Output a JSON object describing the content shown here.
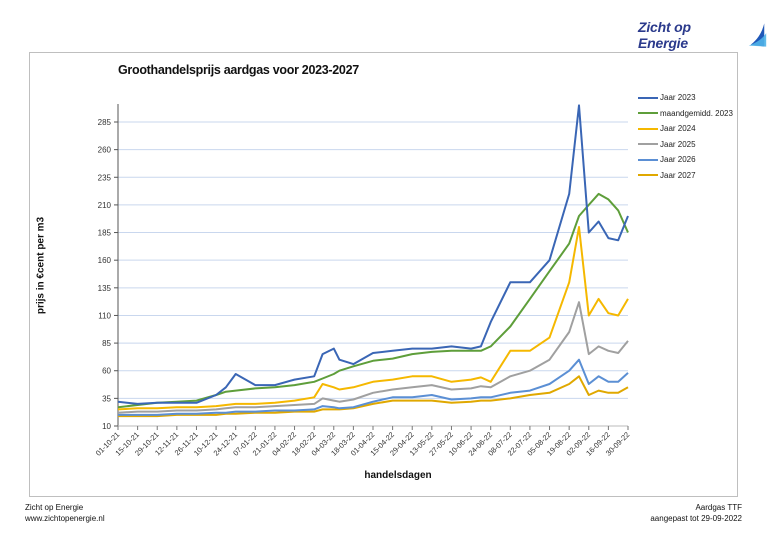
{
  "header": {
    "logo_text": "Zicht op Energie"
  },
  "footer": {
    "left_line1": "Zicht op Energie",
    "left_line2": "www.zichtopenergie.nl",
    "right_line1": "Aardgas TTF",
    "right_line2": "aangepast tot 29-09-2022"
  },
  "chart_data": {
    "type": "line",
    "title": "Groothandelsprijs aardgas voor 2023-2027",
    "xlabel": "handelsdagen",
    "ylabel": "prijs in €cent per m3",
    "ylim": [
      10,
      300
    ],
    "yticks": [
      10,
      35,
      60,
      85,
      110,
      135,
      160,
      185,
      210,
      235,
      260,
      285
    ],
    "grid": true,
    "legend_position": "right",
    "x_tick_labels": [
      "01-10-21",
      "15-10-21",
      "29-10-21",
      "12-11-21",
      "26-11-21",
      "10-12-21",
      "24-12-21",
      "07-01-22",
      "21-01-22",
      "04-02-22",
      "18-02-22",
      "04-03-22",
      "18-03-22",
      "01-04-22",
      "15-04-22",
      "29-04-22",
      "13-05-22",
      "27-05-22",
      "10-06-22",
      "24-06-22",
      "08-07-22",
      "22-07-22",
      "05-08-22",
      "19-08-22",
      "02-09-22",
      "16-09-22",
      "30-09-22"
    ],
    "x": [
      "01-10-21",
      "15-10-21",
      "29-10-21",
      "12-11-21",
      "26-11-21",
      "10-12-21",
      "17-12-21",
      "24-12-21",
      "07-01-22",
      "21-01-22",
      "04-02-22",
      "18-02-22",
      "24-02-22",
      "04-03-22",
      "08-03-22",
      "18-03-22",
      "01-04-22",
      "15-04-22",
      "29-04-22",
      "13-05-22",
      "27-05-22",
      "10-06-22",
      "17-06-22",
      "24-06-22",
      "08-07-22",
      "22-07-22",
      "05-08-22",
      "19-08-22",
      "26-08-22",
      "02-09-22",
      "09-09-22",
      "16-09-22",
      "23-09-22",
      "30-09-22"
    ],
    "series": [
      {
        "name": "Jaar 2023",
        "color": "#3a66b5",
        "values": [
          32,
          30,
          31,
          31,
          31,
          38,
          45,
          57,
          47,
          47,
          52,
          55,
          75,
          80,
          70,
          66,
          76,
          78,
          80,
          80,
          82,
          80,
          82,
          104,
          140,
          140,
          160,
          220,
          300,
          185,
          195,
          180,
          178,
          200
        ]
      },
      {
        "name": "maandgemidd. 2023",
        "color": "#5e9e3a",
        "values": [
          27,
          29,
          31,
          32,
          33,
          38,
          41,
          42,
          44,
          45,
          47,
          50,
          53,
          57,
          60,
          64,
          69,
          71,
          75,
          77,
          78,
          78,
          78,
          82,
          100,
          125,
          150,
          175,
          200,
          210,
          220,
          215,
          205,
          185
        ]
      },
      {
        "name": "Jaar 2024",
        "color": "#f5b800",
        "values": [
          25,
          26,
          26,
          27,
          27,
          28,
          29,
          30,
          30,
          31,
          33,
          36,
          48,
          45,
          43,
          45,
          50,
          52,
          55,
          55,
          50,
          52,
          54,
          50,
          78,
          78,
          90,
          140,
          190,
          110,
          125,
          112,
          110,
          125
        ]
      },
      {
        "name": "Jaar 2025",
        "color": "#a0a0a0",
        "values": [
          22,
          23,
          23,
          24,
          24,
          25,
          26,
          27,
          27,
          28,
          29,
          30,
          35,
          33,
          32,
          34,
          40,
          43,
          45,
          47,
          43,
          44,
          46,
          45,
          55,
          60,
          70,
          95,
          122,
          75,
          82,
          78,
          76,
          87
        ]
      },
      {
        "name": "Jaar 2026",
        "color": "#5b8fd4",
        "values": [
          20,
          20,
          20,
          21,
          21,
          22,
          22,
          23,
          23,
          24,
          24,
          25,
          28,
          27,
          26,
          27,
          32,
          36,
          36,
          38,
          34,
          35,
          36,
          36,
          40,
          42,
          48,
          60,
          70,
          48,
          55,
          50,
          50,
          58
        ]
      },
      {
        "name": "Jaar 2027",
        "color": "#e0a800",
        "values": [
          19,
          19,
          19,
          20,
          20,
          20,
          21,
          21,
          22,
          22,
          23,
          23,
          25,
          25,
          25,
          26,
          30,
          33,
          33,
          33,
          31,
          32,
          33,
          33,
          35,
          38,
          40,
          48,
          55,
          38,
          42,
          40,
          40,
          45
        ]
      }
    ]
  }
}
